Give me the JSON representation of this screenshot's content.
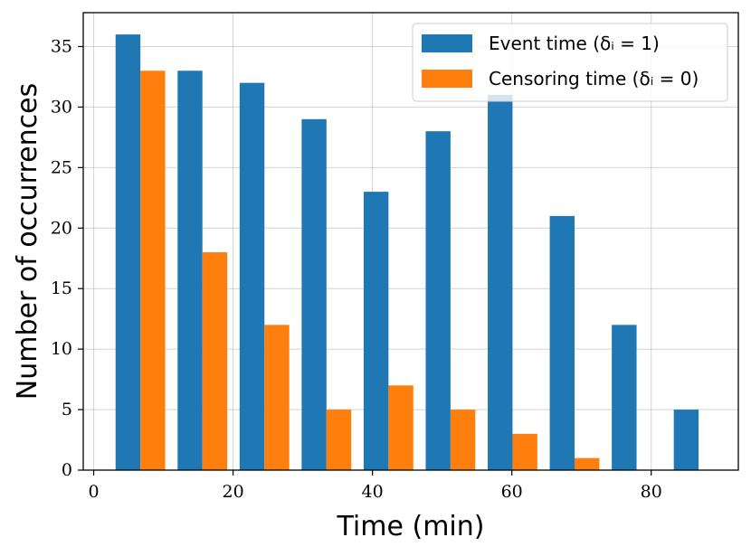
{
  "chart_data": {
    "type": "bar",
    "title": "",
    "xlabel": "Time (min)",
    "ylabel": "Number of occurrences",
    "xlim": [
      -1.5,
      92.5
    ],
    "ylim": [
      0,
      37.8
    ],
    "grid": true,
    "legend_position": "top-right",
    "bin_centers": [
      6.7,
      15.6,
      24.5,
      33.4,
      42.3,
      51.2,
      60.1,
      69.0,
      77.9,
      86.8
    ],
    "bin_width": 8.9,
    "xticks": [
      0,
      20,
      40,
      60,
      80
    ],
    "yticks": [
      0,
      5,
      10,
      15,
      20,
      25,
      30,
      35
    ],
    "series": [
      {
        "name": "Event time (δᵢ = 1)",
        "color": "#1f77b4",
        "values": [
          36,
          33,
          32,
          29,
          23,
          28,
          31,
          21,
          12,
          5
        ]
      },
      {
        "name": "Censoring time (δᵢ = 0)",
        "color": "#ff7f0e",
        "values": [
          33,
          18,
          12,
          5,
          7,
          5,
          3,
          1,
          0,
          0
        ]
      }
    ]
  }
}
